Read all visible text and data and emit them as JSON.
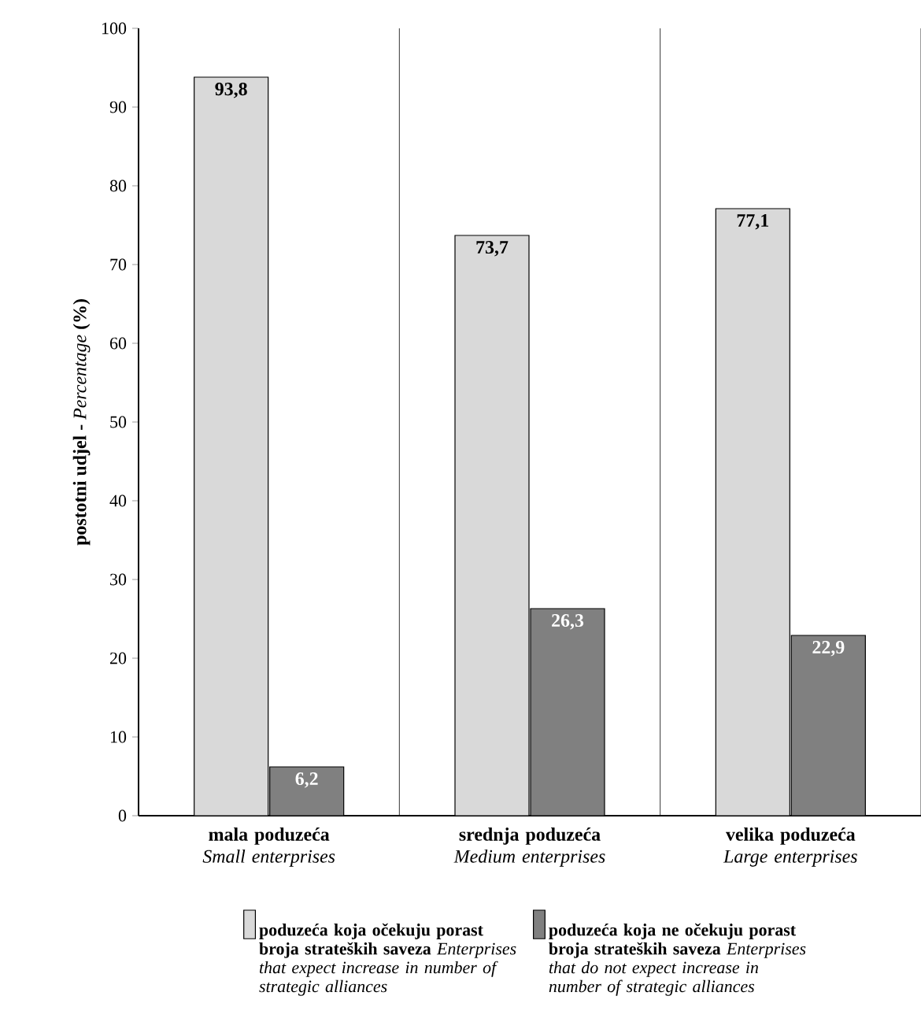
{
  "chart_data": {
    "type": "bar",
    "ylabel": "**postotni udjel -** *Percentage* **(%)**",
    "categories": [
      "**mala poduzeća** *Small enterprises*",
      "**srednja poduzeća** *Medium enterprises*",
      "**velika poduzeća** *Large enterprises*"
    ],
    "series": [
      {
        "name": "**poduzeća koja očekuju porast broja strateških saveza** *Enterprises that expect increase in number of strategic alliances*",
        "color": "#d9d9d9",
        "values": [
          93.8,
          73.7,
          77.1
        ],
        "value_labels": [
          "93,8",
          "73,7",
          "77,1"
        ]
      },
      {
        "name": "**poduzeća koja ne očekuju porast broja strateških saveza** *Enterprises that do not expect increase in number of strategic alliances*",
        "color": "#808080",
        "values": [
          6.2,
          26.3,
          22.9
        ],
        "value_labels": [
          "6,2",
          "26,3",
          "22,9"
        ]
      }
    ],
    "ylim": [
      0,
      100
    ],
    "yticks": [
      0,
      10,
      20,
      30,
      40,
      50,
      60,
      70,
      80,
      90,
      100
    ],
    "grid": "x",
    "legend": "bottom"
  }
}
